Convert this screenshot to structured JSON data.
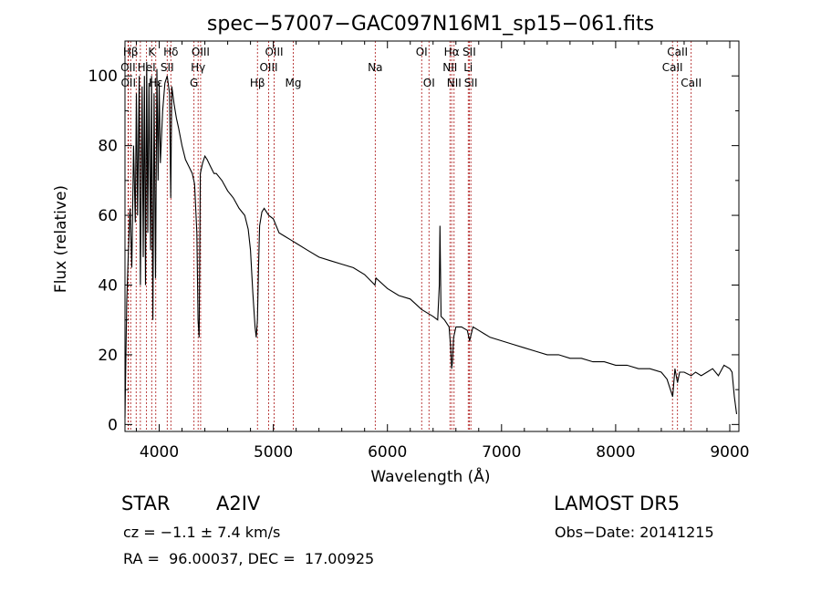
{
  "footer": {
    "class_label": "STAR",
    "subclass": "A2IV",
    "survey": "LAMOST DR5",
    "cz": "cz = −1.1 ± 7.4 km/s",
    "obs_date": "Obs−Date: 20141215",
    "coords": "RA =  96.00037, DEC =  17.00925"
  },
  "chart_data": {
    "type": "line",
    "title": "spec−57007−GAC097N16M1_sp15−061.fits",
    "xlabel": "Wavelength (Å)",
    "ylabel": "Flux (relative)",
    "xlim": [
      3700,
      9080
    ],
    "ylim": [
      -2,
      110
    ],
    "xticks": [
      4000,
      5000,
      6000,
      7000,
      8000,
      9000
    ],
    "yticks": [
      0,
      20,
      40,
      60,
      80,
      100
    ],
    "grid": false,
    "line_color": "#000000",
    "marker_color": "#aa1111",
    "spectrum": {
      "x": [
        3700,
        3715,
        3730,
        3745,
        3760,
        3775,
        3790,
        3800,
        3810,
        3825,
        3835,
        3850,
        3860,
        3870,
        3880,
        3890,
        3900,
        3910,
        3925,
        3933,
        3945,
        3955,
        3968,
        3980,
        3990,
        4000,
        4010,
        4030,
        4050,
        4070,
        4090,
        4101,
        4110,
        4130,
        4150,
        4170,
        4200,
        4230,
        4260,
        4290,
        4310,
        4330,
        4340,
        4350,
        4360,
        4380,
        4400,
        4420,
        4450,
        4480,
        4500,
        4550,
        4600,
        4650,
        4700,
        4750,
        4780,
        4800,
        4820,
        4840,
        4850,
        4861,
        4870,
        4880,
        4900,
        4920,
        4940,
        4960,
        5000,
        5050,
        5100,
        5150,
        5200,
        5300,
        5400,
        5500,
        5600,
        5700,
        5800,
        5890,
        5900,
        6000,
        6100,
        6200,
        6300,
        6400,
        6440,
        6455,
        6460,
        6470,
        6500,
        6540,
        6555,
        6563,
        6570,
        6580,
        6600,
        6650,
        6700,
        6720,
        6750,
        6800,
        6850,
        6900,
        7000,
        7100,
        7200,
        7300,
        7400,
        7500,
        7600,
        7700,
        7800,
        7900,
        8000,
        8100,
        8200,
        8300,
        8400,
        8450,
        8480,
        8500,
        8520,
        8542,
        8560,
        8600,
        8662,
        8700,
        8750,
        8800,
        8850,
        8900,
        8950,
        9000,
        9020,
        9040,
        9060
      ],
      "y": [
        2,
        35,
        50,
        62,
        45,
        80,
        58,
        95,
        60,
        100,
        40,
        97,
        48,
        100,
        40,
        104,
        55,
        98,
        50,
        100,
        30,
        95,
        42,
        102,
        70,
        98,
        75,
        90,
        98,
        100,
        95,
        65,
        97,
        92,
        88,
        85,
        80,
        76,
        74,
        72,
        69,
        55,
        30,
        25,
        72,
        75,
        77,
        76,
        74,
        72,
        72,
        70,
        67,
        65,
        62,
        60,
        56,
        50,
        38,
        28,
        25,
        30,
        45,
        57,
        61,
        62,
        61,
        60,
        59,
        55,
        54,
        53,
        52,
        50,
        48,
        47,
        46,
        45,
        43,
        40,
        42,
        39,
        37,
        36,
        33,
        31,
        30,
        40,
        57,
        31,
        30,
        28,
        22,
        16,
        18,
        25,
        28,
        28,
        27,
        24,
        28,
        27,
        26,
        25,
        24,
        23,
        22,
        21,
        20,
        20,
        19,
        19,
        18,
        18,
        17,
        17,
        16,
        16,
        15,
        13,
        10,
        8,
        16,
        12,
        15,
        15,
        14,
        15,
        14,
        15,
        16,
        14,
        17,
        16,
        15,
        8,
        3
      ]
    },
    "lines": [
      {
        "name": "Hβ",
        "wl": 3750,
        "row": 0
      },
      {
        "name": "OII",
        "wl": 3727,
        "row": 1
      },
      {
        "name": "OII",
        "wl": 3730,
        "row": 2
      },
      {
        "name": "K",
        "wl": 3934,
        "row": 0
      },
      {
        "name": "HeI",
        "wl": 3889,
        "row": 1
      },
      {
        "name": "Hε",
        "wl": 3970,
        "row": 2
      },
      {
        "name": "Hδ",
        "wl": 4102,
        "row": 0
      },
      {
        "name": "SII",
        "wl": 4070,
        "row": 1
      },
      {
        "name": "OIII",
        "wl": 4363,
        "row": 0
      },
      {
        "name": "Hγ",
        "wl": 4341,
        "row": 1
      },
      {
        "name": "G",
        "wl": 4305,
        "row": 2
      },
      {
        "name": "Hβ",
        "wl": 4861,
        "row": 2
      },
      {
        "name": "OIII",
        "wl": 5007,
        "row": 0
      },
      {
        "name": "OIII",
        "wl": 4959,
        "row": 1
      },
      {
        "name": "Mg",
        "wl": 5175,
        "row": 2
      },
      {
        "name": "Na",
        "wl": 5893,
        "row": 1
      },
      {
        "name": "OI",
        "wl": 6300,
        "row": 0
      },
      {
        "name": "OI",
        "wl": 6364,
        "row": 2
      },
      {
        "name": "Hα",
        "wl": 6563,
        "row": 0
      },
      {
        "name": "NII",
        "wl": 6548,
        "row": 1
      },
      {
        "name": "NII",
        "wl": 6584,
        "row": 2
      },
      {
        "name": "SII",
        "wl": 6717,
        "row": 0
      },
      {
        "name": "Li",
        "wl": 6708,
        "row": 1
      },
      {
        "name": "SII",
        "wl": 6731,
        "row": 2
      },
      {
        "name": "CaII",
        "wl": 8542,
        "row": 0
      },
      {
        "name": "CaII",
        "wl": 8498,
        "row": 1
      },
      {
        "name": "CaII",
        "wl": 8662,
        "row": 2
      }
    ],
    "extra_marker_wl": [
      3798,
      3835,
      3889,
      3934,
      3970,
      4070,
      4102,
      4305,
      4341,
      4363,
      4861,
      4959,
      5007,
      5175,
      5893,
      6300,
      6364,
      6548,
      6563,
      6584,
      6708,
      6717,
      6731,
      8498,
      8542,
      8662
    ]
  }
}
